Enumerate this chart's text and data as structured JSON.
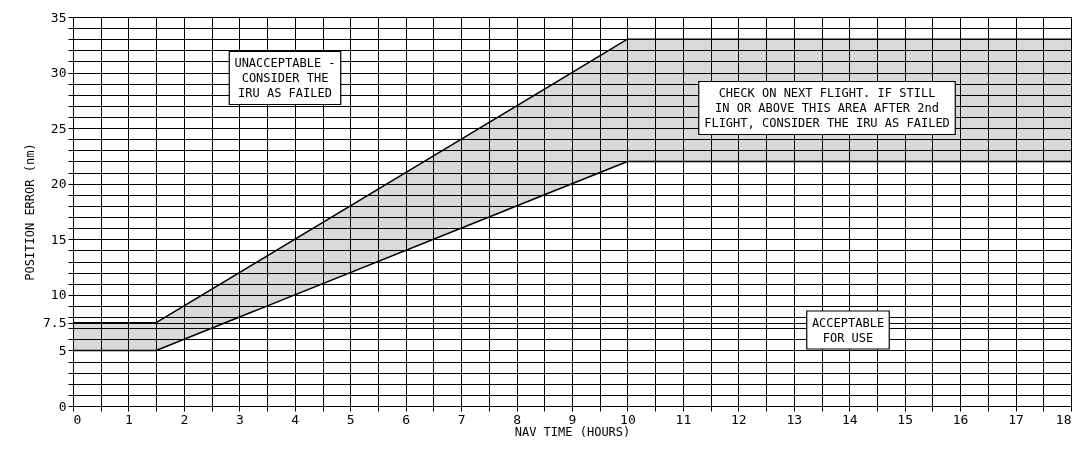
{
  "chart_data": {
    "type": "line",
    "xlabel": "NAV TIME (HOURS)",
    "ylabel": "POSITION ERROR (nm)",
    "x": [
      0,
      1.5,
      10,
      18
    ],
    "series": [
      {
        "color": "#000000",
        "values": [
          7.5,
          7.5,
          33,
          33
        ]
      },
      {
        "color": "#000000",
        "values": [
          5,
          5,
          22,
          22
        ],
        "lower": [
          5,
          5,
          22,
          22
        ],
        "upper": [
          7.5,
          7.5,
          33,
          33
        ]
      }
    ],
    "xlim": [
      0,
      18
    ],
    "xticks": [
      0,
      {
        "value": 0.5,
        "label": null
      },
      1,
      {
        "value": 1.5,
        "label": null
      },
      2,
      {
        "value": 2.5,
        "label": null
      },
      3,
      {
        "value": 3.5,
        "label": null
      },
      4,
      {
        "value": 4.5,
        "label": null
      },
      5,
      {
        "value": 5.5,
        "label": null
      },
      6,
      {
        "value": 6.5,
        "label": null
      },
      7,
      {
        "value": 7.5,
        "label": null
      },
      8,
      {
        "value": 8.5,
        "label": null
      },
      9,
      {
        "value": 9.5,
        "label": null
      },
      10,
      {
        "value": 10.5,
        "label": null
      },
      11,
      {
        "value": 11.5,
        "label": null
      },
      12,
      {
        "value": 12.5,
        "label": null
      },
      13,
      {
        "value": 13.5,
        "label": null
      },
      14,
      {
        "value": 14.5,
        "label": null
      },
      15,
      {
        "value": 15.5,
        "label": null
      },
      16,
      {
        "value": 16.5,
        "label": null
      },
      17,
      {
        "value": 17.5,
        "label": null
      },
      18
    ],
    "ylim": [
      0,
      35
    ],
    "yticks": [
      0,
      {
        "value": 1,
        "label": null
      },
      {
        "value": 2,
        "label": null
      },
      {
        "value": 3,
        "label": null
      },
      {
        "value": 4,
        "label": null
      },
      5,
      {
        "value": 6,
        "label": null
      },
      {
        "value": 7,
        "label": null
      },
      7.5,
      {
        "value": 8,
        "label": null
      },
      {
        "value": 9,
        "label": null
      },
      10,
      {
        "value": 11,
        "label": null
      },
      {
        "value": 12,
        "label": null
      },
      {
        "value": 13,
        "label": null
      },
      {
        "value": 14,
        "label": null
      },
      15,
      {
        "value": 16,
        "label": null
      },
      {
        "value": 17,
        "label": null
      },
      {
        "value": 18,
        "label": null
      },
      {
        "value": 19,
        "label": null
      },
      20,
      {
        "value": 21,
        "label": null
      },
      {
        "value": 22,
        "label": null
      },
      {
        "value": 23,
        "label": null
      },
      {
        "value": 24,
        "label": null
      },
      25,
      {
        "value": 26,
        "label": null
      },
      {
        "value": 27,
        "label": null
      },
      {
        "value": 28,
        "label": null
      },
      {
        "value": 29,
        "label": null
      },
      30,
      {
        "value": 31,
        "label": null
      },
      {
        "value": 32,
        "label": null
      },
      {
        "value": 33,
        "label": null
      },
      {
        "value": 34,
        "label": null
      },
      35
    ],
    "grid": true,
    "annotations": [
      "UNACCEPTABLE -\nCONSIDER THE\nIRU AS FAILED",
      "CHECK ON NEXT FLIGHT. IF STILL\nIN OR ABOVE THIS AREA AFTER 2nd\nFLIGHT, CONSIDER THE IRU AS FAILED",
      "ACCEPTABLE\nFOR USE"
    ]
  }
}
